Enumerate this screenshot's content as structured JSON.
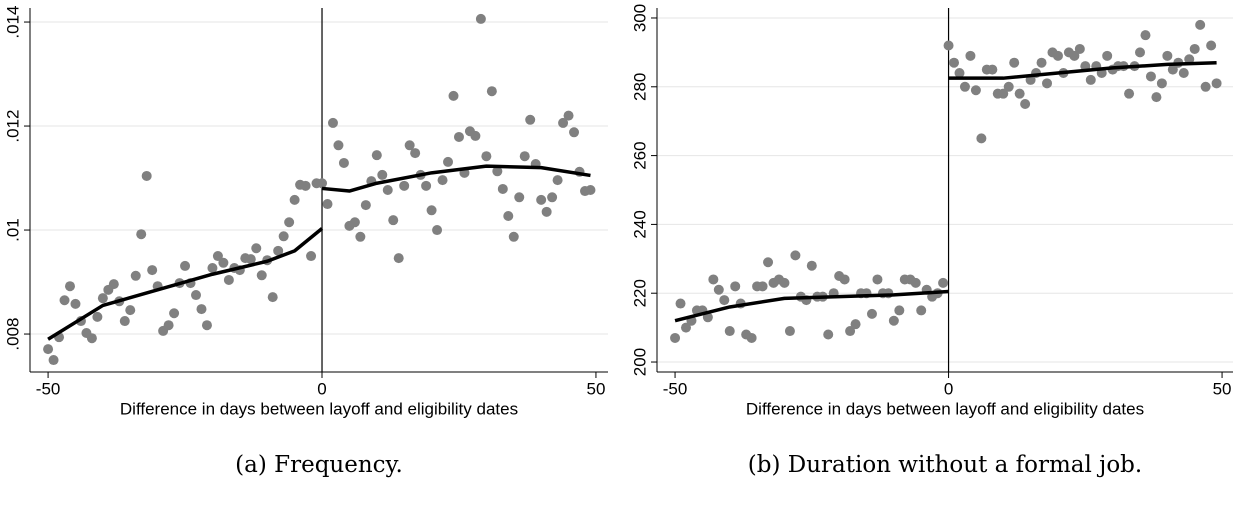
{
  "chart_data": [
    {
      "type": "scatter",
      "caption": "(a) Frequency.",
      "xlabel": "Difference in days between layoff and eligibility dates",
      "xlim": [
        -53.3,
        52.2
      ],
      "xticks": [
        -50,
        0,
        50
      ],
      "ylim": [
        0.00727,
        0.01427
      ],
      "yticks": [
        {
          "value": 0.008,
          "label": ".008"
        },
        {
          "value": 0.01,
          "label": ".01"
        },
        {
          "value": 0.012,
          "label": ".012"
        },
        {
          "value": 0.014,
          "label": ".014"
        }
      ],
      "grid": true,
      "vline": 0,
      "series": [
        {
          "color": "#808080",
          "marker": "point",
          "x": [
            -50,
            -49,
            -48,
            -47,
            -46,
            -45,
            -44,
            -43,
            -42,
            -41,
            -40,
            -39,
            -38,
            -37,
            -36,
            -35,
            -34,
            -33,
            -32,
            -31,
            -30,
            -29,
            -28,
            -27,
            -26,
            -25,
            -24,
            -23,
            -22,
            -21,
            -20,
            -19,
            -18,
            -17,
            -16,
            -15,
            -14,
            -13,
            -12,
            -11,
            -10,
            -9,
            -8,
            -7,
            -6,
            -5,
            -4,
            -3,
            -2,
            -1,
            0,
            1,
            2,
            3,
            4,
            5,
            6,
            7,
            8,
            9,
            10,
            11,
            12,
            13,
            14,
            15,
            16,
            17,
            18,
            19,
            20,
            21,
            22,
            23,
            24,
            25,
            26,
            27,
            28,
            29,
            30,
            31,
            32,
            33,
            34,
            35,
            36,
            37,
            38,
            39,
            40,
            41,
            42,
            43,
            44,
            45,
            46,
            47,
            48,
            49
          ],
          "values": [
            0.00771,
            0.0075,
            0.00794,
            0.00865,
            0.00892,
            0.00858,
            0.00825,
            0.00802,
            0.00792,
            0.00833,
            0.00869,
            0.00885,
            0.00896,
            0.00863,
            0.00825,
            0.00846,
            0.00912,
            0.00992,
            0.01104,
            0.00923,
            0.00892,
            0.00806,
            0.00817,
            0.0084,
            0.00898,
            0.00931,
            0.00898,
            0.00875,
            0.00848,
            0.00817,
            0.00927,
            0.0095,
            0.00937,
            0.00904,
            0.00927,
            0.00923,
            0.00946,
            0.00944,
            0.00965,
            0.00913,
            0.00942,
            0.00871,
            0.0096,
            0.00988,
            0.01015,
            0.01058,
            0.01087,
            0.01085,
            0.0095,
            0.0109,
            0.0109,
            0.0105,
            0.01206,
            0.01163,
            0.01129,
            0.01008,
            0.01015,
            0.00987,
            0.01048,
            0.01094,
            0.01144,
            0.01106,
            0.01077,
            0.01019,
            0.00946,
            0.01085,
            0.01163,
            0.01148,
            0.01106,
            0.01085,
            0.01038,
            0.01,
            0.01096,
            0.01131,
            0.01258,
            0.01179,
            0.0111,
            0.0119,
            0.01181,
            0.01406,
            0.01142,
            0.01267,
            0.01113,
            0.01079,
            0.01027,
            0.00987,
            0.01063,
            0.01142,
            0.01212,
            0.01127,
            0.01058,
            0.01035,
            0.01063,
            0.01096,
            0.01206,
            0.0122,
            0.01188,
            0.01112,
            0.01075,
            0.01077
          ]
        },
        {
          "color": "#000000",
          "marker": "line",
          "x": [
            -50,
            -40,
            -30,
            -20,
            -10,
            -5,
            0
          ],
          "values": [
            0.0079,
            0.00855,
            0.00885,
            0.00915,
            0.0094,
            0.0096,
            0.01003
          ]
        },
        {
          "color": "#000000",
          "marker": "line",
          "x": [
            0,
            5,
            10,
            20,
            30,
            40,
            49
          ],
          "values": [
            0.0108,
            0.01075,
            0.0109,
            0.0111,
            0.01123,
            0.0112,
            0.01105
          ]
        }
      ]
    },
    {
      "type": "scatter",
      "caption": "(b) Duration without a formal job.",
      "xlabel": "Difference in days between layoff and eligibility dates",
      "xlim": [
        -53.3,
        52
      ],
      "xticks": [
        -50,
        0,
        50
      ],
      "ylim": [
        197.1,
        302.9
      ],
      "yticks": [
        200,
        220,
        240,
        260,
        280,
        300
      ],
      "grid": true,
      "vline": 0,
      "series": [
        {
          "color": "#808080",
          "marker": "point",
          "x": [
            -50,
            -49,
            -48,
            -47,
            -46,
            -45,
            -44,
            -43,
            -42,
            -41,
            -40,
            -39,
            -38,
            -37,
            -36,
            -35,
            -34,
            -33,
            -32,
            -31,
            -30,
            -29,
            -28,
            -27,
            -26,
            -25,
            -24,
            -23,
            -22,
            -21,
            -20,
            -19,
            -18,
            -17,
            -16,
            -15,
            -14,
            -13,
            -12,
            -11,
            -10,
            -9,
            -8,
            -7,
            -6,
            -5,
            -4,
            -3,
            -2,
            -1,
            0,
            1,
            2,
            3,
            4,
            5,
            6,
            7,
            8,
            9,
            10,
            11,
            12,
            13,
            14,
            15,
            16,
            17,
            18,
            19,
            20,
            21,
            22,
            23,
            24,
            25,
            26,
            27,
            28,
            29,
            30,
            31,
            32,
            33,
            34,
            35,
            36,
            37,
            38,
            39,
            40,
            41,
            42,
            43,
            44,
            45,
            46,
            47,
            48,
            49
          ],
          "values": [
            207,
            217,
            210,
            212,
            215,
            215,
            213,
            224,
            221,
            218,
            209,
            222,
            217,
            208,
            207,
            222,
            222,
            229,
            223,
            224,
            223,
            209,
            231,
            219,
            218,
            228,
            219,
            219,
            208,
            220,
            225,
            224,
            209,
            211,
            220,
            220,
            214,
            224,
            220,
            220,
            212,
            215,
            224,
            224,
            223,
            215,
            221,
            219,
            220,
            223,
            292,
            287,
            284,
            280,
            289,
            279,
            265,
            285,
            285,
            278,
            278,
            280,
            287,
            278,
            275,
            282,
            284,
            287,
            281,
            290,
            289,
            284,
            290,
            289,
            291,
            286,
            282,
            286,
            284,
            289,
            285,
            286,
            286,
            278,
            286,
            290,
            295,
            283,
            277,
            281,
            289,
            285,
            287,
            284,
            288,
            291,
            298,
            280,
            292,
            281
          ]
        },
        {
          "color": "#000000",
          "marker": "line",
          "x": [
            -50,
            -40,
            -30,
            -20,
            -10,
            0
          ],
          "values": [
            212,
            216,
            218.5,
            219,
            219.5,
            220.5
          ]
        },
        {
          "color": "#000000",
          "marker": "line",
          "x": [
            0,
            10,
            20,
            30,
            40,
            49
          ],
          "values": [
            282.5,
            282.5,
            284,
            285.5,
            286.5,
            287
          ]
        }
      ]
    }
  ]
}
